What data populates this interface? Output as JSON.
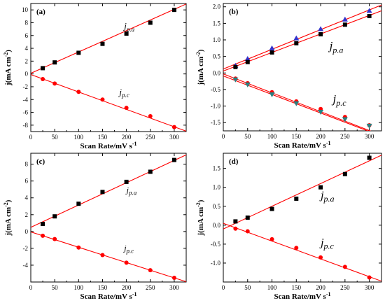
{
  "chart_data": [
    {
      "type": "scatter",
      "label": "(a)",
      "xlabel": "Scan Rate/mV s",
      "xlabel_sup": "-1",
      "ylabel": "j(mA cm",
      "ylabel_sup": "-2",
      "ylabel_end": ")",
      "xlim": [
        0,
        325
      ],
      "ylim": [
        -9,
        11
      ],
      "xticks": [
        0,
        50,
        100,
        150,
        200,
        250,
        300
      ],
      "yticks": [
        -8,
        -6,
        -4,
        -2,
        0,
        2,
        4,
        6,
        8,
        10
      ],
      "grid": false,
      "series": [
        {
          "name": "jp.a",
          "label_main": "j",
          "label_sub": "p.a",
          "label_x": 195,
          "label_y": 7,
          "label_size": 13,
          "marker": "square",
          "color": "#000000",
          "x": [
            25,
            50,
            100,
            150,
            200,
            250,
            300
          ],
          "y": [
            0.9,
            1.8,
            3.3,
            4.7,
            6.3,
            8.0,
            10.0
          ],
          "fit": [
            0.1,
            0.0333
          ]
        },
        {
          "name": "jp.c",
          "label_main": "j",
          "label_sub": "p.c",
          "label_x": 185,
          "label_y": -3.3,
          "label_size": 13,
          "marker": "circle",
          "color": "#ff0000",
          "x": [
            25,
            50,
            100,
            150,
            200,
            250,
            300
          ],
          "y": [
            -0.8,
            -1.5,
            -2.8,
            -4.0,
            -5.3,
            -6.6,
            -8.3
          ],
          "fit": [
            -0.1,
            -0.0272
          ]
        }
      ]
    },
    {
      "type": "scatter",
      "label": "(b)",
      "xlabel": "Scan Rate/mV s",
      "xlabel_sup": "-1",
      "ylabel": "j(mA cm",
      "ylabel_sup": "-2",
      "ylabel_end": ")",
      "xlim": [
        0,
        325
      ],
      "ylim": [
        -1.75,
        2.1
      ],
      "xticks": [
        0,
        50,
        100,
        150,
        200,
        250,
        300
      ],
      "yticks": [
        -1.5,
        -1.0,
        -0.5,
        0.0,
        0.5,
        1.0,
        1.5,
        2.0
      ],
      "ytick_labels": [
        "-1.5",
        "-1.0",
        "-0.5",
        "0.0",
        "0.5",
        "1.0",
        "1.5",
        "2.0"
      ],
      "grid": false,
      "series": [
        {
          "name": "tri-up",
          "label_main": "",
          "label_sub": "",
          "marker": "triangle-up",
          "color": "#3333cc",
          "x": [
            25,
            50,
            100,
            150,
            200,
            250,
            300
          ],
          "y": [
            0.22,
            0.43,
            0.75,
            1.05,
            1.33,
            1.62,
            1.88
          ],
          "fit": [
            0.12,
            0.00595
          ]
        },
        {
          "name": "jp.a",
          "label_main": "j",
          "label_sub": "p.a",
          "label_x": 218,
          "label_y": 0.7,
          "label_size": 17,
          "marker": "square",
          "color": "#000000",
          "x": [
            25,
            50,
            100,
            150,
            200,
            250,
            300
          ],
          "y": [
            0.18,
            0.33,
            0.62,
            0.9,
            1.17,
            1.46,
            1.72
          ],
          "fit": [
            0.06,
            0.0056
          ]
        },
        {
          "name": "circ",
          "label_main": "",
          "label_sub": "",
          "marker": "circle",
          "color": "#ff0000",
          "x": [
            25,
            50,
            100,
            150,
            200,
            250,
            300
          ],
          "y": [
            -0.17,
            -0.31,
            -0.58,
            -0.86,
            -1.09,
            -1.33,
            -1.58
          ],
          "fit": [
            -0.03,
            -0.0057
          ]
        },
        {
          "name": "jp.c",
          "label_main": "j",
          "label_sub": "p.c",
          "label_x": 225,
          "label_y": -0.9,
          "label_size": 17,
          "marker": "triangle-down",
          "color": "#2a7f7f",
          "x": [
            25,
            50,
            100,
            150,
            200,
            250,
            300
          ],
          "y": [
            -0.2,
            -0.35,
            -0.65,
            -0.92,
            -1.18,
            -1.4,
            -1.6
          ],
          "fit": [
            -0.09,
            -0.0056
          ]
        }
      ]
    },
    {
      "type": "scatter",
      "label": "(c)",
      "xlabel": "Scan Rate/mV s",
      "xlabel_sup": "-1",
      "ylabel": "j(mA cm",
      "ylabel_sup": "-2",
      "ylabel_end": ")",
      "xlim": [
        0,
        325
      ],
      "ylim": [
        -6,
        9.3
      ],
      "xticks": [
        0,
        50,
        100,
        150,
        200,
        250,
        300
      ],
      "yticks": [
        -4,
        -2,
        0,
        2,
        4,
        6,
        8
      ],
      "grid": false,
      "series": [
        {
          "name": "jp.a",
          "label_main": "j",
          "label_sub": "p.a",
          "label_x": 200,
          "label_y": 4.6,
          "label_size": 12,
          "marker": "square",
          "color": "#000000",
          "x": [
            25,
            50,
            100,
            150,
            200,
            250,
            300
          ],
          "y": [
            0.9,
            1.8,
            3.3,
            4.7,
            5.9,
            7.1,
            8.5
          ],
          "fit": [
            0.5,
            0.0265
          ]
        },
        {
          "name": "jp.c",
          "label_main": "j",
          "label_sub": "p.c",
          "label_x": 195,
          "label_y": -2.3,
          "label_size": 12,
          "marker": "circle",
          "color": "#ff0000",
          "x": [
            25,
            50,
            100,
            150,
            200,
            250,
            300
          ],
          "y": [
            -0.5,
            -0.9,
            -1.9,
            -2.8,
            -3.7,
            -4.6,
            -5.5
          ],
          "fit": [
            -0.05,
            -0.0182
          ]
        }
      ]
    },
    {
      "type": "scatter",
      "label": "(d)",
      "xlabel": "Scan Rate/mV s",
      "xlabel_sup": "-1",
      "ylabel": "j(mA cm",
      "ylabel_sup": "-2",
      "ylabel_end": ")",
      "xlim": [
        0,
        325
      ],
      "ylim": [
        -1.5,
        1.9
      ],
      "xticks": [
        0,
        50,
        100,
        150,
        200,
        250,
        300
      ],
      "yticks": [
        -1.0,
        -0.5,
        0.0,
        0.5,
        1.0,
        1.5
      ],
      "ytick_labels": [
        "-1.0",
        "-0.5",
        "0.0",
        "0.5",
        "1.0",
        "1.5"
      ],
      "grid": false,
      "series": [
        {
          "name": "jp.a",
          "label_main": "j",
          "label_sub": "p.a",
          "label_x": 200,
          "label_y": 0.7,
          "label_size": 16,
          "marker": "square",
          "color": "#000000",
          "x": [
            25,
            50,
            100,
            150,
            200,
            250,
            300
          ],
          "y": [
            0.1,
            0.2,
            0.43,
            0.7,
            1.0,
            1.35,
            1.78
          ],
          "fit": [
            -0.1,
            0.006
          ]
        },
        {
          "name": "jp.c",
          "label_main": "j",
          "label_sub": "p.c",
          "label_x": 200,
          "label_y": -0.55,
          "label_size": 16,
          "marker": "circle",
          "color": "#ff0000",
          "x": [
            25,
            50,
            100,
            150,
            200,
            250,
            300
          ],
          "y": [
            -0.09,
            -0.16,
            -0.37,
            -0.6,
            -0.85,
            -1.1,
            -1.38
          ],
          "fit": [
            0.05,
            -0.0047
          ]
        }
      ]
    }
  ]
}
